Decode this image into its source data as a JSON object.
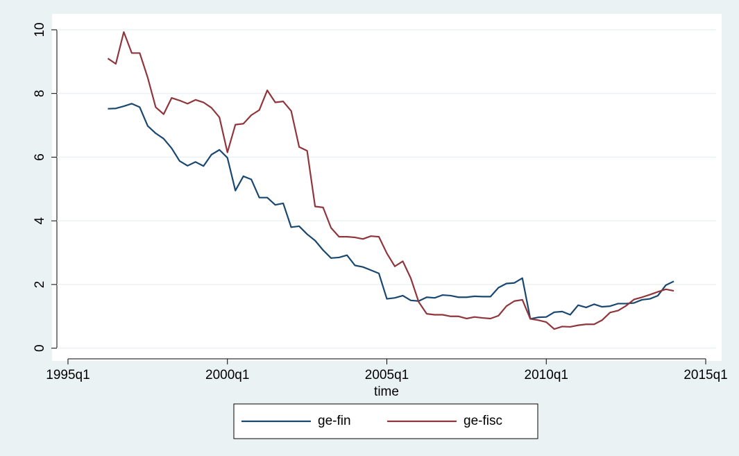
{
  "chart_data": {
    "type": "line",
    "x_label": "time",
    "x": [
      "1996q2",
      "1996q3",
      "1996q4",
      "1997q1",
      "1997q2",
      "1997q3",
      "1997q4",
      "1998q1",
      "1998q2",
      "1998q3",
      "1998q4",
      "1999q1",
      "1999q2",
      "1999q3",
      "1999q4",
      "2000q1",
      "2000q2",
      "2000q3",
      "2000q4",
      "2001q1",
      "2001q2",
      "2001q3",
      "2001q4",
      "2002q1",
      "2002q2",
      "2002q3",
      "2002q4",
      "2003q1",
      "2003q2",
      "2003q3",
      "2003q4",
      "2004q1",
      "2004q2",
      "2004q3",
      "2004q4",
      "2005q1",
      "2005q2",
      "2005q3",
      "2005q4",
      "2006q1",
      "2006q2",
      "2006q3",
      "2006q4",
      "2007q1",
      "2007q2",
      "2007q3",
      "2007q4",
      "2008q1",
      "2008q2",
      "2008q3",
      "2008q4",
      "2009q1",
      "2009q2",
      "2009q3",
      "2009q4",
      "2010q1",
      "2010q2",
      "2010q3",
      "2010q4",
      "2011q1",
      "2011q2",
      "2011q3",
      "2011q4",
      "2012q1",
      "2012q2",
      "2012q3",
      "2012q4",
      "2013q1",
      "2013q2",
      "2013q3",
      "2013q4",
      "2014q1"
    ],
    "series": [
      {
        "name": "ge-fin",
        "color": "#1a476f",
        "values": [
          7.52,
          7.53,
          7.6,
          7.68,
          7.57,
          6.98,
          6.75,
          6.58,
          6.28,
          5.88,
          5.73,
          5.85,
          5.72,
          6.08,
          6.23,
          5.98,
          4.95,
          5.4,
          5.3,
          4.73,
          4.73,
          4.5,
          4.55,
          3.8,
          3.83,
          3.58,
          3.38,
          3.08,
          2.83,
          2.85,
          2.92,
          2.6,
          2.55,
          2.45,
          2.35,
          1.55,
          1.58,
          1.65,
          1.5,
          1.48,
          1.6,
          1.58,
          1.67,
          1.65,
          1.6,
          1.6,
          1.63,
          1.62,
          1.62,
          1.9,
          2.03,
          2.05,
          2.2,
          0.92,
          0.97,
          0.98,
          1.13,
          1.15,
          1.05,
          1.35,
          1.28,
          1.38,
          1.3,
          1.32,
          1.4,
          1.4,
          1.42,
          1.52,
          1.55,
          1.65,
          1.98,
          2.1
        ]
      },
      {
        "name": "ge-fisc",
        "color": "#90353b",
        "values": [
          9.1,
          8.93,
          9.93,
          9.27,
          9.27,
          8.5,
          7.57,
          7.35,
          7.86,
          7.78,
          7.68,
          7.8,
          7.72,
          7.55,
          7.25,
          6.15,
          7.02,
          7.05,
          7.32,
          7.48,
          8.1,
          7.72,
          7.75,
          7.45,
          6.32,
          6.2,
          4.45,
          4.42,
          3.78,
          3.5,
          3.5,
          3.48,
          3.43,
          3.52,
          3.5,
          2.98,
          2.57,
          2.73,
          2.2,
          1.45,
          1.08,
          1.05,
          1.05,
          1.0,
          1.0,
          0.93,
          0.98,
          0.95,
          0.93,
          1.02,
          1.32,
          1.48,
          1.52,
          0.92,
          0.88,
          0.82,
          0.6,
          0.68,
          0.67,
          0.72,
          0.75,
          0.75,
          0.88,
          1.12,
          1.18,
          1.33,
          1.53,
          1.6,
          1.68,
          1.77,
          1.85,
          1.8
        ]
      }
    ],
    "xlim": [
      "1994q3",
      "2015q3"
    ],
    "xticks": [
      "1995q1",
      "2000q1",
      "2005q1",
      "2010q1",
      "2015q1"
    ],
    "ylim": [
      -0.4,
      10.5
    ],
    "yticks": [
      0,
      2,
      4,
      6,
      8,
      10
    ],
    "grid": true,
    "legend": "bottom"
  }
}
